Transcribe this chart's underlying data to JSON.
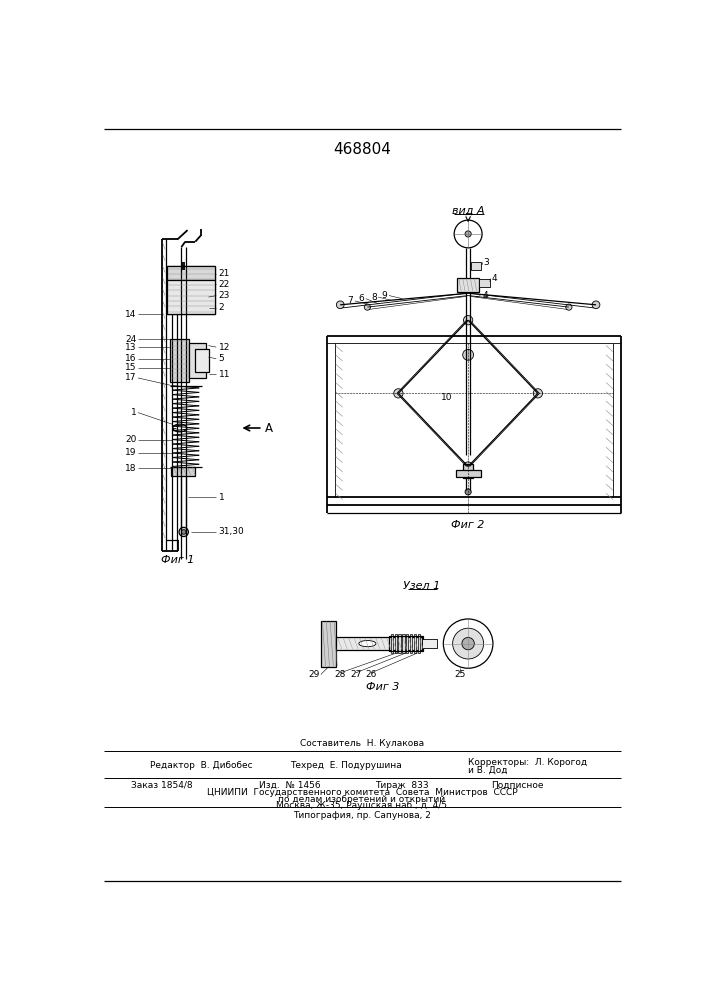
{
  "title": "468804",
  "bg_color": "#ffffff",
  "fig1_label": "Фиг 1",
  "fig2_label": "Фиг 2",
  "fig3_label": "Фиг 3",
  "vid_a_label": "вид A",
  "uzel1_label": "Узел 1",
  "arrow_a_label": "A",
  "footer_comp": "Составитель  Н. Кулакова",
  "footer_ed": "Редактор  В. Дибобес",
  "footer_tech": "Техред  Е. Подурушина",
  "footer_corr1": "Корректоры:  Л. Корогод",
  "footer_corr2": "и В. Дод",
  "footer_order": "Заказ 1854/8",
  "footer_izd": "Изд.  № 1456",
  "footer_tirazh": "Тираж  833",
  "footer_podp": "Подписное",
  "footer_cniip": "ЦНИИПИ  Государственного комитета  Совета  Министров  СССР",
  "footer_dela": "по делам изобретений и открытий",
  "footer_addr": "Москва, Ж-35, Раушская наб., д. 4/5",
  "footer_tip": "Типография, пр. Сапунова, 2"
}
